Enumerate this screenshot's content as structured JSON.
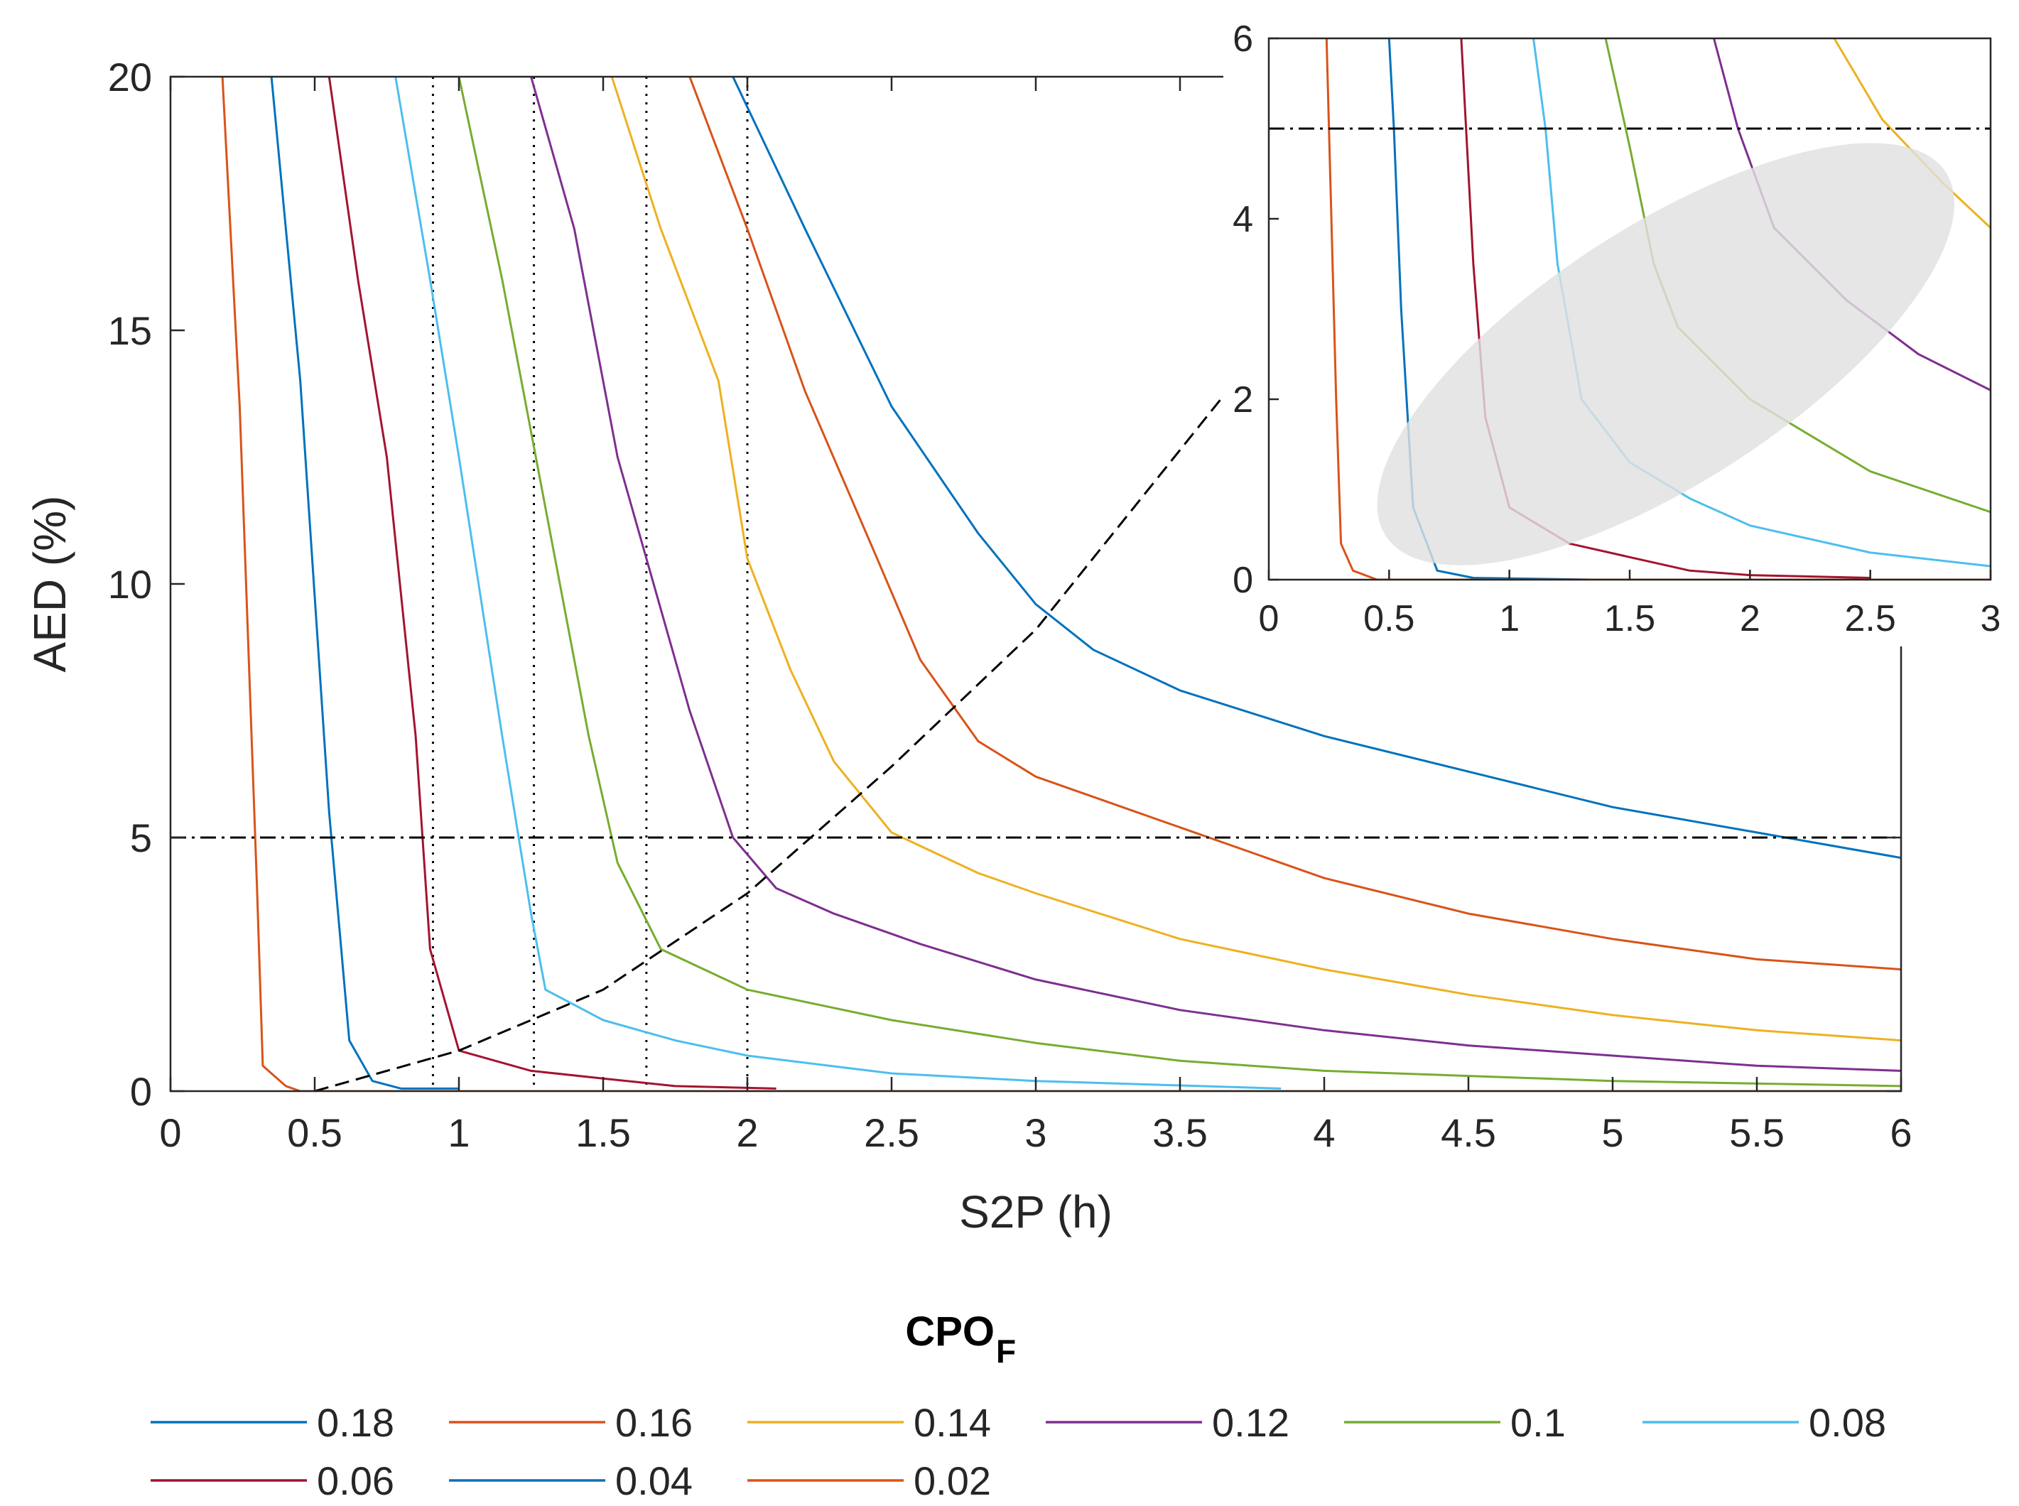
{
  "chart_data": [
    {
      "type": "line",
      "panel": "main",
      "xlabel": "S2P (h)",
      "ylabel": "AED (%)",
      "xlim": [
        0,
        6
      ],
      "ylim": [
        0,
        20
      ],
      "x_ticks": [
        "0",
        "0.5",
        "1",
        "1.5",
        "2",
        "2.5",
        "3",
        "3.5",
        "4",
        "4.5",
        "5",
        "5.5",
        "6"
      ],
      "y_ticks": [
        "0",
        "5",
        "10",
        "15",
        "20"
      ],
      "threshold_line": {
        "y": 5,
        "style": "dash-dot"
      },
      "vertical_dotted_lines_x": [
        0.91,
        1.26,
        1.65,
        2.0
      ],
      "trend_line": {
        "style": "dashed",
        "points": [
          [
            0.5,
            0
          ],
          [
            1.0,
            0.8
          ],
          [
            1.5,
            2.0
          ],
          [
            2.0,
            3.9
          ],
          [
            2.5,
            6.4
          ],
          [
            3.0,
            9.1
          ]
        ]
      },
      "legend": {
        "title": "CPO",
        "title_subscript": "F",
        "position": "bottom"
      },
      "series": [
        {
          "name": "0.18",
          "color": "#0072BD",
          "points": [
            [
              1.95,
              20
            ],
            [
              2.2,
              17
            ],
            [
              2.5,
              13.5
            ],
            [
              2.8,
              11.0
            ],
            [
              3.0,
              9.6
            ],
            [
              3.2,
              8.7
            ],
            [
              3.5,
              7.9
            ],
            [
              4.0,
              7.0
            ],
            [
              4.5,
              6.3
            ],
            [
              5.0,
              5.6
            ],
            [
              5.5,
              5.1
            ],
            [
              6.0,
              4.6
            ]
          ]
        },
        {
          "name": "0.16",
          "color": "#D95319",
          "points": [
            [
              1.8,
              20
            ],
            [
              2.0,
              17.0
            ],
            [
              2.2,
              13.8
            ],
            [
              2.45,
              10.5
            ],
            [
              2.6,
              8.5
            ],
            [
              2.8,
              6.9
            ],
            [
              3.0,
              6.2
            ],
            [
              3.5,
              5.2
            ],
            [
              4.0,
              4.2
            ],
            [
              4.5,
              3.5
            ],
            [
              5.0,
              3.0
            ],
            [
              5.5,
              2.6
            ],
            [
              6.0,
              2.4
            ]
          ]
        },
        {
          "name": "0.14",
          "color": "#EDB120",
          "points": [
            [
              1.53,
              20
            ],
            [
              1.7,
              17.0
            ],
            [
              1.9,
              14.0
            ],
            [
              2.0,
              10.5
            ],
            [
              2.15,
              8.3
            ],
            [
              2.3,
              6.5
            ],
            [
              2.5,
              5.1
            ],
            [
              2.8,
              4.3
            ],
            [
              3.0,
              3.9
            ],
            [
              3.5,
              3.0
            ],
            [
              4.0,
              2.4
            ],
            [
              4.5,
              1.9
            ],
            [
              5.0,
              1.5
            ],
            [
              5.5,
              1.2
            ],
            [
              6.0,
              1.0
            ]
          ]
        },
        {
          "name": "0.12",
          "color": "#7E2F8E",
          "points": [
            [
              1.25,
              20
            ],
            [
              1.4,
              17.0
            ],
            [
              1.55,
              12.5
            ],
            [
              1.7,
              9.5
            ],
            [
              1.8,
              7.5
            ],
            [
              1.95,
              5.0
            ],
            [
              2.1,
              4.0
            ],
            [
              2.3,
              3.5
            ],
            [
              2.6,
              2.9
            ],
            [
              3.0,
              2.2
            ],
            [
              3.5,
              1.6
            ],
            [
              4.0,
              1.2
            ],
            [
              4.5,
              0.9
            ],
            [
              5.0,
              0.7
            ],
            [
              5.5,
              0.5
            ],
            [
              6.0,
              0.4
            ]
          ]
        },
        {
          "name": "0.1",
          "color": "#77AC30",
          "points": [
            [
              1.0,
              20
            ],
            [
              1.15,
              16.0
            ],
            [
              1.3,
              11.5
            ],
            [
              1.45,
              7.0
            ],
            [
              1.55,
              4.5
            ],
            [
              1.7,
              2.8
            ],
            [
              2.0,
              2.0
            ],
            [
              2.5,
              1.4
            ],
            [
              3.0,
              0.95
            ],
            [
              3.5,
              0.6
            ],
            [
              4.0,
              0.4
            ],
            [
              5.0,
              0.2
            ],
            [
              6.0,
              0.1
            ]
          ]
        },
        {
          "name": "0.08",
          "color": "#4DBEEE",
          "points": [
            [
              0.78,
              20
            ],
            [
              0.9,
              16.0
            ],
            [
              1.0,
              12.5
            ],
            [
              1.15,
              7.0
            ],
            [
              1.25,
              3.5
            ],
            [
              1.3,
              2.0
            ],
            [
              1.5,
              1.4
            ],
            [
              1.75,
              1.0
            ],
            [
              2.0,
              0.7
            ],
            [
              2.5,
              0.35
            ],
            [
              3.0,
              0.2
            ],
            [
              3.85,
              0.05
            ]
          ]
        },
        {
          "name": "0.06",
          "color": "#A2142F",
          "points": [
            [
              0.55,
              20
            ],
            [
              0.65,
              16.0
            ],
            [
              0.75,
              12.5
            ],
            [
              0.85,
              7.0
            ],
            [
              0.9,
              2.8
            ],
            [
              1.0,
              0.8
            ],
            [
              1.25,
              0.4
            ],
            [
              1.5,
              0.25
            ],
            [
              1.75,
              0.1
            ],
            [
              2.1,
              0.05
            ]
          ]
        },
        {
          "name": "0.04",
          "color": "#0072BD",
          "points": [
            [
              0.35,
              20
            ],
            [
              0.45,
              14.0
            ],
            [
              0.55,
              5.5
            ],
            [
              0.62,
              1.0
            ],
            [
              0.7,
              0.2
            ],
            [
              0.8,
              0.05
            ],
            [
              1.0,
              0.05
            ]
          ]
        },
        {
          "name": "0.02",
          "color": "#D95319",
          "points": [
            [
              0.18,
              20
            ],
            [
              0.24,
              13.5
            ],
            [
              0.3,
              4.0
            ],
            [
              0.32,
              0.5
            ],
            [
              0.4,
              0.1
            ],
            [
              0.45,
              0.0
            ],
            [
              6.0,
              0.0
            ]
          ]
        }
      ]
    },
    {
      "type": "line",
      "panel": "inset",
      "xlim": [
        0,
        3
      ],
      "ylim": [
        0,
        6
      ],
      "x_ticks": [
        "0",
        "0.5",
        "1",
        "1.5",
        "2",
        "2.5",
        "3"
      ],
      "y_ticks": [
        "0",
        "2",
        "4",
        "6"
      ],
      "threshold_line": {
        "y": 5,
        "style": "dash-dot"
      },
      "highlight_region": {
        "shape": "ellipse",
        "color": "#E0E0E0",
        "center": [
          1.65,
          2.5
        ]
      },
      "series": [
        {
          "name": "0.18",
          "color": "#0072BD",
          "points": []
        },
        {
          "name": "0.16",
          "color": "#D95319",
          "points": []
        },
        {
          "name": "0.14",
          "color": "#EDB120",
          "points": [
            [
              2.35,
              6.0
            ],
            [
              2.55,
              5.1
            ],
            [
              2.8,
              4.4
            ],
            [
              3.0,
              3.9
            ]
          ]
        },
        {
          "name": "0.12",
          "color": "#7E2F8E",
          "points": [
            [
              1.85,
              6.0
            ],
            [
              1.95,
              5.0
            ],
            [
              2.1,
              3.9
            ],
            [
              2.4,
              3.1
            ],
            [
              2.7,
              2.5
            ],
            [
              3.0,
              2.1
            ]
          ]
        },
        {
          "name": "0.1",
          "color": "#77AC30",
          "points": [
            [
              1.4,
              6.0
            ],
            [
              1.5,
              4.8
            ],
            [
              1.6,
              3.5
            ],
            [
              1.7,
              2.8
            ],
            [
              2.0,
              2.0
            ],
            [
              2.5,
              1.2
            ],
            [
              3.0,
              0.75
            ]
          ]
        },
        {
          "name": "0.08",
          "color": "#4DBEEE",
          "points": [
            [
              1.1,
              6.0
            ],
            [
              1.15,
              5.0
            ],
            [
              1.2,
              3.5
            ],
            [
              1.3,
              2.0
            ],
            [
              1.5,
              1.3
            ],
            [
              1.75,
              0.9
            ],
            [
              2.0,
              0.6
            ],
            [
              2.5,
              0.3
            ],
            [
              3.0,
              0.15
            ]
          ]
        },
        {
          "name": "0.06",
          "color": "#A2142F",
          "points": [
            [
              0.8,
              6.0
            ],
            [
              0.82,
              5.0
            ],
            [
              0.85,
              3.5
            ],
            [
              0.9,
              1.8
            ],
            [
              1.0,
              0.8
            ],
            [
              1.25,
              0.4
            ],
            [
              1.5,
              0.25
            ],
            [
              1.75,
              0.1
            ],
            [
              2.0,
              0.05
            ],
            [
              2.5,
              0.02
            ]
          ]
        },
        {
          "name": "0.04",
          "color": "#0072BD",
          "points": [
            [
              0.5,
              6.0
            ],
            [
              0.52,
              5.0
            ],
            [
              0.55,
              3.0
            ],
            [
              0.6,
              0.8
            ],
            [
              0.7,
              0.1
            ],
            [
              0.85,
              0.02
            ],
            [
              1.35,
              0.0
            ]
          ]
        },
        {
          "name": "0.02",
          "color": "#D95319",
          "points": [
            [
              0.24,
              6.0
            ],
            [
              0.26,
              4.0
            ],
            [
              0.28,
              2.0
            ],
            [
              0.3,
              0.4
            ],
            [
              0.35,
              0.1
            ],
            [
              0.45,
              0.0
            ],
            [
              3.0,
              0.0
            ]
          ]
        }
      ]
    }
  ]
}
